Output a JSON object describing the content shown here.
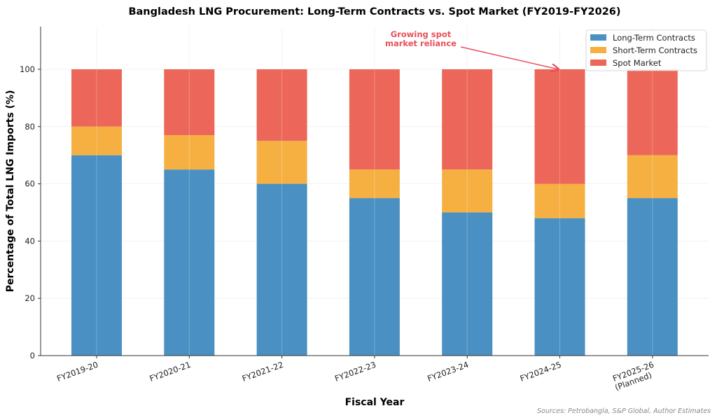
{
  "chart_data": {
    "type": "bar",
    "stacked": true,
    "title": "Bangladesh LNG Procurement: Long-Term Contracts vs. Spot Market (FY2019-FY2026)",
    "xlabel": "Fiscal Year",
    "ylabel": "Percentage of Total LNG Imports (%)",
    "ylim": [
      0,
      115
    ],
    "yticks": [
      0,
      20,
      40,
      60,
      80,
      100
    ],
    "grid": true,
    "legend_position": "top-right",
    "categories": [
      "FY2019-20",
      "FY2020-21",
      "FY2021-22",
      "FY2022-23",
      "FY2023-24",
      "FY2024-25",
      "FY2025-26\n(Planned)"
    ],
    "series": [
      {
        "name": "Long-Term Contracts",
        "color": "#4a90c2",
        "values": [
          70,
          65,
          60,
          55,
          50,
          48,
          55
        ]
      },
      {
        "name": "Short-Term Contracts",
        "color": "#f5b041",
        "values": [
          10,
          12,
          15,
          10,
          15,
          12,
          15
        ]
      },
      {
        "name": "Spot Market",
        "color": "#ec6759",
        "values": [
          20,
          23,
          25,
          35,
          35,
          40,
          30
        ]
      }
    ],
    "annotation": {
      "text": [
        "Growing spot",
        "market reliance"
      ],
      "target_category": "FY2024-25",
      "target_value": 100,
      "color": "#e8505b"
    },
    "source": "Sources: Petrobangla, S&P Global, Author Estimates"
  }
}
